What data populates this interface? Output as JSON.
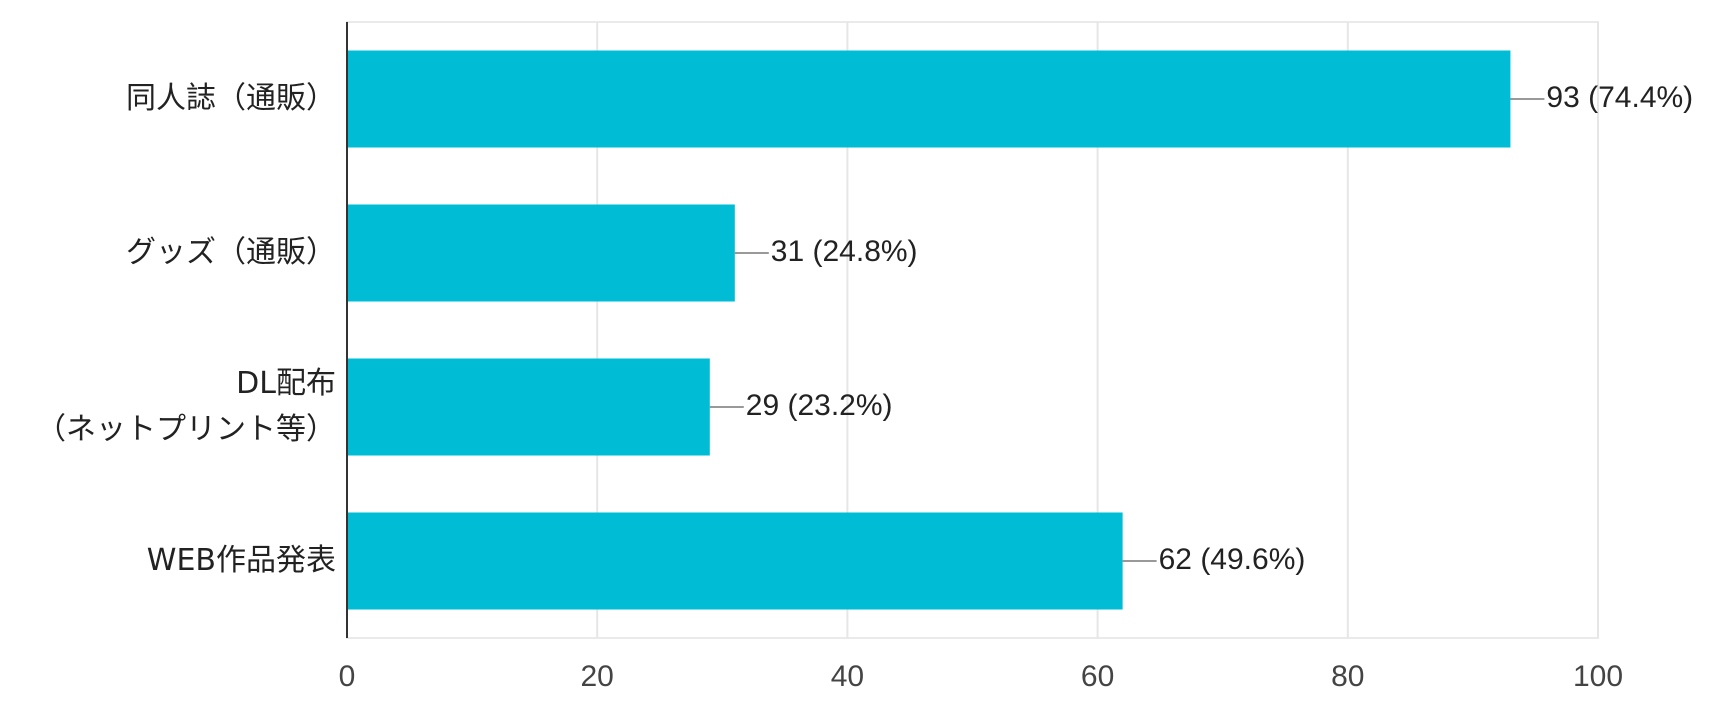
{
  "chart_data": {
    "type": "bar",
    "orientation": "horizontal",
    "categories": [
      "同人誌（通販）",
      "グッズ（通販）",
      "DL配布\n（ネットプリント等）",
      "WEB作品発表"
    ],
    "values": [
      93,
      31,
      29,
      62
    ],
    "value_labels": [
      "93 (74.4%)",
      "31 (24.8%)",
      "29 (23.2%)",
      "62 (49.6%)"
    ],
    "color": "#00bcd4",
    "xlim": [
      0,
      100
    ],
    "xticks": [
      0,
      20,
      40,
      60,
      80,
      100
    ],
    "grid": true
  }
}
